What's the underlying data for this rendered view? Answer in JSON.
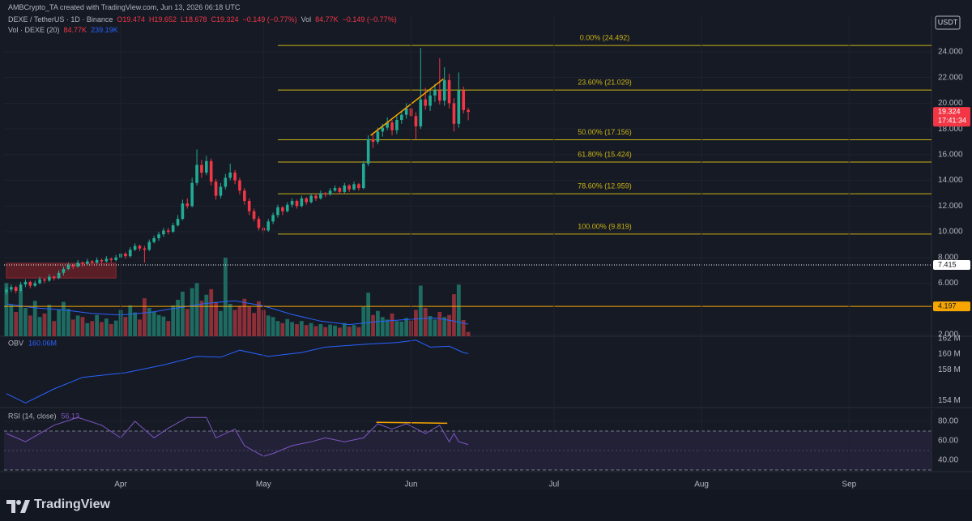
{
  "header": {
    "credit": "AMBCrypto_TA created with TradingView.com, Jun 13, 2026 06:18 UTC",
    "symbol": "DEXE / TetherUS · 1D · Binance",
    "quote": [
      "O19.474",
      "H19.652",
      "L18.678",
      "C19.324",
      "−0.149 (−0.77%)",
      "Vol",
      "84.77K",
      "−0.149 (−0.77%)"
    ]
  },
  "footer": {
    "brand": "TradingView"
  },
  "chart_data": [
    {
      "type": "candlestick",
      "scale_label": "USDT",
      "xlim": [
        -0.5,
        194.3
      ],
      "ylim": [
        1.87,
        26.77
      ],
      "grid": true,
      "up_color": "#22ab94",
      "down_color": "#f23645",
      "yticks": [
        {
          "value": 2,
          "label": "2.000"
        },
        {
          "value": 6,
          "label": "6.000"
        },
        {
          "value": 8,
          "label": "8.000"
        },
        {
          "value": 10,
          "label": "10.000"
        },
        {
          "value": 12,
          "label": "12.000"
        },
        {
          "value": 14,
          "label": "14.000"
        },
        {
          "value": 16,
          "label": "16.000"
        },
        {
          "value": 18,
          "label": "18.000"
        },
        {
          "value": 20,
          "label": "20.000"
        },
        {
          "value": 22,
          "label": "22.000"
        },
        {
          "value": 24,
          "label": "24.000"
        }
      ],
      "ohlc": [
        [
          5.3,
          5.7,
          5.1,
          5.5
        ],
        [
          5.5,
          5.9,
          5.3,
          5.7
        ],
        [
          5.7,
          5.8,
          5.2,
          5.4
        ],
        [
          5.4,
          6.1,
          5.3,
          5.9
        ],
        [
          5.9,
          6.3,
          5.7,
          6.1
        ],
        [
          6.1,
          6.2,
          5.6,
          5.8
        ],
        [
          5.8,
          6.2,
          5.7,
          6.0
        ],
        [
          6.0,
          6.5,
          5.9,
          6.3
        ],
        [
          6.3,
          6.4,
          6.0,
          6.2
        ],
        [
          6.2,
          6.7,
          6.1,
          6.5
        ],
        [
          6.5,
          6.6,
          6.2,
          6.4
        ],
        [
          6.4,
          7.0,
          6.3,
          6.8
        ],
        [
          6.8,
          7.3,
          6.6,
          7.1
        ],
        [
          7.1,
          7.6,
          7.0,
          7.4
        ],
        [
          7.4,
          7.5,
          7.1,
          7.3
        ],
        [
          7.3,
          7.8,
          7.2,
          7.6
        ],
        [
          7.6,
          7.7,
          7.3,
          7.5
        ],
        [
          7.5,
          7.9,
          7.4,
          7.7
        ],
        [
          7.7,
          7.8,
          7.4,
          7.6
        ],
        [
          7.6,
          8.0,
          7.5,
          7.8
        ],
        [
          7.8,
          7.9,
          7.5,
          7.7
        ],
        [
          7.7,
          8.1,
          7.6,
          7.9
        ],
        [
          7.9,
          8.0,
          7.6,
          7.8
        ],
        [
          7.8,
          8.2,
          7.7,
          8.0
        ],
        [
          8.0,
          8.5,
          7.9,
          8.3
        ],
        [
          8.3,
          8.4,
          7.9,
          8.1
        ],
        [
          8.1,
          8.8,
          8.0,
          8.6
        ],
        [
          8.6,
          9.1,
          8.5,
          8.9
        ],
        [
          8.9,
          9.0,
          8.5,
          8.7
        ],
        [
          8.7,
          8.9,
          7.6,
          8.6
        ],
        [
          8.6,
          9.4,
          8.5,
          9.2
        ],
        [
          9.2,
          9.7,
          9.1,
          9.5
        ],
        [
          9.5,
          10.0,
          9.3,
          9.8
        ],
        [
          9.8,
          10.3,
          9.6,
          10.1
        ],
        [
          10.1,
          10.3,
          9.8,
          10.0
        ],
        [
          10.0,
          10.7,
          9.9,
          10.5
        ],
        [
          10.5,
          11.3,
          10.4,
          11.0
        ],
        [
          11.0,
          12.5,
          10.9,
          12.2
        ],
        [
          12.2,
          12.6,
          11.8,
          12.0
        ],
        [
          12.0,
          14.2,
          11.9,
          13.8
        ],
        [
          13.8,
          16.4,
          13.6,
          15.2
        ],
        [
          15.2,
          15.6,
          14.2,
          14.6
        ],
        [
          14.6,
          15.9,
          14.4,
          15.5
        ],
        [
          15.5,
          15.7,
          13.6,
          13.9
        ],
        [
          13.9,
          14.1,
          12.5,
          12.8
        ],
        [
          12.8,
          13.8,
          12.6,
          13.5
        ],
        [
          13.5,
          14.5,
          13.3,
          14.2
        ],
        [
          14.2,
          15.3,
          14.0,
          14.6
        ],
        [
          14.6,
          14.8,
          13.7,
          14.0
        ],
        [
          14.0,
          14.2,
          12.9,
          13.2
        ],
        [
          13.2,
          13.4,
          12.1,
          12.4
        ],
        [
          12.4,
          12.6,
          11.3,
          11.6
        ],
        [
          11.6,
          11.8,
          10.8,
          11.0
        ],
        [
          11.0,
          11.2,
          10.1,
          10.3
        ],
        [
          10.3,
          10.5,
          9.8,
          10.1
        ],
        [
          10.1,
          11.0,
          10.0,
          10.8
        ],
        [
          10.8,
          11.5,
          10.6,
          11.3
        ],
        [
          11.3,
          12.1,
          11.1,
          11.9
        ],
        [
          11.9,
          12.0,
          11.3,
          11.6
        ],
        [
          11.6,
          12.3,
          11.5,
          12.1
        ],
        [
          12.1,
          12.6,
          11.9,
          12.4
        ],
        [
          12.4,
          12.5,
          11.8,
          12.0
        ],
        [
          12.0,
          12.8,
          11.9,
          12.6
        ],
        [
          12.6,
          12.7,
          12.1,
          12.3
        ],
        [
          12.3,
          13.0,
          12.2,
          12.8
        ],
        [
          12.8,
          13.0,
          12.4,
          12.6
        ],
        [
          12.6,
          13.2,
          12.5,
          13.0
        ],
        [
          13.0,
          13.1,
          12.7,
          12.9
        ],
        [
          12.9,
          13.4,
          12.8,
          13.2
        ],
        [
          13.2,
          13.6,
          13.1,
          13.4
        ],
        [
          13.4,
          13.5,
          12.9,
          13.1
        ],
        [
          13.1,
          13.8,
          13.0,
          13.6
        ],
        [
          13.6,
          13.7,
          13.1,
          13.3
        ],
        [
          13.3,
          13.9,
          13.2,
          13.7
        ],
        [
          13.7,
          13.8,
          13.2,
          13.4
        ],
        [
          13.4,
          15.5,
          13.3,
          15.3
        ],
        [
          15.3,
          17.5,
          15.1,
          17.2
        ],
        [
          17.2,
          17.6,
          16.5,
          17.0
        ],
        [
          17.0,
          18.1,
          16.8,
          17.8
        ],
        [
          17.8,
          18.4,
          17.4,
          18.1
        ],
        [
          18.1,
          18.9,
          17.9,
          18.5
        ],
        [
          18.5,
          18.7,
          17.5,
          17.9
        ],
        [
          17.9,
          19.0,
          17.6,
          18.7
        ],
        [
          18.7,
          19.4,
          18.4,
          19.1
        ],
        [
          19.1,
          20.0,
          18.8,
          19.6
        ],
        [
          19.6,
          19.8,
          18.7,
          19.0
        ],
        [
          19.0,
          19.3,
          17.2,
          18.2
        ],
        [
          18.2,
          24.3,
          18.0,
          20.3
        ],
        [
          20.3,
          21.2,
          19.5,
          19.8
        ],
        [
          19.8,
          21.0,
          19.4,
          20.6
        ],
        [
          20.6,
          21.5,
          20.1,
          21.0
        ],
        [
          21.0,
          23.5,
          19.9,
          20.2
        ],
        [
          20.2,
          22.8,
          19.8,
          21.8
        ],
        [
          21.8,
          22.3,
          19.6,
          20.0
        ],
        [
          20.0,
          20.4,
          17.8,
          18.4
        ],
        [
          18.4,
          22.4,
          18.1,
          21.0
        ],
        [
          21.0,
          21.3,
          19.2,
          19.47
        ],
        [
          19.474,
          19.652,
          18.678,
          19.324
        ]
      ],
      "volume": {
        "title": "Vol · DEXE (20)",
        "legend": [
          "84.77K",
          "239.19K"
        ],
        "ylim": [
          0,
          6320
        ],
        "up_color": "#1e6b62",
        "down_color": "#8c2f39",
        "values": [
          1050,
          620,
          480,
          900,
          560,
          410,
          700,
          380,
          450,
          620,
          300,
          520,
          680,
          540,
          330,
          410,
          380,
          260,
          300,
          420,
          280,
          350,
          240,
          310,
          520,
          380,
          610,
          470,
          330,
          750,
          560,
          480,
          420,
          390,
          300,
          610,
          720,
          880,
          540,
          950,
          1050,
          700,
          820,
          930,
          680,
          500,
          1550,
          640,
          520,
          600,
          740,
          580,
          460,
          690,
          520,
          410,
          380,
          300,
          260,
          340,
          280,
          240,
          300,
          220,
          260,
          200,
          240,
          180,
          230,
          210,
          170,
          260,
          190,
          220,
          180,
          580,
          860,
          420,
          500,
          380,
          330,
          450,
          300,
          290,
          360,
          310,
          520,
          1000,
          560,
          400,
          330,
          480,
          380,
          420,
          830,
          1020,
          320,
          84.77
        ],
        "ma_color": "#2962ff",
        "ma_x": [
          0,
          6,
          12,
          18,
          24,
          30,
          36,
          42,
          48,
          54,
          60,
          66,
          72,
          78,
          84,
          90,
          94,
          97
        ],
        "ma_values": [
          640,
          560,
          520,
          450,
          420,
          470,
          560,
          650,
          700,
          600,
          430,
          300,
          230,
          290,
          330,
          360,
          300,
          239.19
        ]
      },
      "fib_color": "#c9b215",
      "fib_from": 57,
      "fib": [
        {
          "value": 24.492,
          "label": "0.00% (24.492)"
        },
        {
          "value": 21.029,
          "label": "23.60% (21.029)"
        },
        {
          "value": 17.156,
          "label": "50.00% (17.156)"
        },
        {
          "value": 15.424,
          "label": "61.80% (15.424)"
        },
        {
          "value": 12.959,
          "label": "78.60% (12.959)"
        },
        {
          "value": 9.819,
          "label": "100.00% (9.819)"
        }
      ],
      "zone": {
        "x": [
          0,
          23
        ],
        "y": [
          6.4,
          7.55
        ],
        "color": "#5a1e27"
      },
      "trendline": {
        "x": [
          76.5,
          91.8
        ],
        "y": [
          17.5,
          21.9
        ],
        "color": "#f7a600"
      },
      "price_lines": [
        {
          "value": 19.324,
          "sub": "17:41:34",
          "color": "#f23645",
          "text_color": "#ffffff",
          "style": "none"
        },
        {
          "value": 7.415,
          "color": "#ffffff",
          "text_color": "#131722",
          "style": "dotted"
        },
        {
          "value": 4.197,
          "color": "#f7a600",
          "text_color": "#131722",
          "style": "solid"
        }
      ]
    },
    {
      "type": "line",
      "title": "OBV",
      "legend_value": "160.06M",
      "color": "#2962ff",
      "xlim": [
        -0.5,
        194.3
      ],
      "ylim": [
        153.1,
        162.3
      ],
      "yticks": [
        {
          "value": 154,
          "label": "154 M"
        },
        {
          "value": 158,
          "label": "158 M"
        },
        {
          "value": 160,
          "label": "160 M"
        },
        {
          "value": 162,
          "label": "162 M"
        }
      ],
      "x": [
        0,
        4,
        10,
        16,
        25,
        33,
        40,
        45,
        49,
        55,
        62,
        67,
        76,
        82,
        86,
        89,
        93,
        96,
        97
      ],
      "values": [
        154.9,
        153.7,
        155.5,
        157.0,
        157.6,
        158.6,
        159.7,
        159.6,
        160.5,
        159.7,
        160.2,
        160.9,
        161.3,
        161.5,
        161.8,
        160.9,
        161.0,
        160.2,
        160.06
      ]
    },
    {
      "type": "line",
      "title": "RSI (14, close)",
      "legend_value": "56.13",
      "color": "#7e57c2",
      "xlim": [
        -0.5,
        194.3
      ],
      "ylim": [
        28.3,
        92.5
      ],
      "grid": true,
      "yticks": [
        {
          "value": 40,
          "label": "40.00"
        },
        {
          "value": 60,
          "label": "60.00"
        },
        {
          "value": 80,
          "label": "80.00"
        }
      ],
      "bands": [
        30,
        70
      ],
      "mid": 50,
      "x": [
        0,
        4,
        10,
        15,
        20,
        24,
        27,
        31,
        34,
        38,
        42,
        44,
        48,
        50,
        54,
        56,
        60,
        64,
        67,
        71,
        75,
        78,
        81,
        84,
        88,
        91,
        93,
        94,
        95,
        97
      ],
      "values": [
        67.5,
        59,
        76,
        84,
        76,
        63,
        80,
        63,
        73,
        84,
        84,
        63,
        72,
        55,
        44,
        47,
        55,
        59,
        63,
        59,
        63,
        77.5,
        72,
        77.5,
        67.5,
        76,
        59,
        67.5,
        59,
        56.13
      ],
      "trendline": {
        "x": [
          77.7,
          92.6
        ],
        "y": [
          79,
          78
        ],
        "color": "#f7a600"
      },
      "xticks": [
        {
          "value": 24,
          "label": "Apr"
        },
        {
          "value": 54,
          "label": "May"
        },
        {
          "value": 85,
          "label": "Jun"
        },
        {
          "value": 115,
          "label": "Jul"
        },
        {
          "value": 146,
          "label": "Aug"
        },
        {
          "value": 177,
          "label": "Sep"
        }
      ]
    }
  ]
}
